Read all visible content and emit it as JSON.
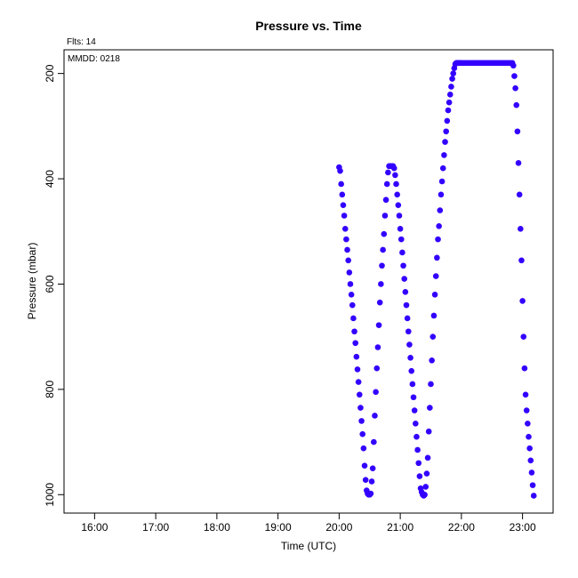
{
  "header": {
    "flts": "Flts: 14",
    "mmdd": "MMDD: 0218"
  },
  "chart_data": {
    "type": "scatter",
    "title": "Pressure  vs. Time",
    "xlabel": "Time (UTC)",
    "ylabel": "Pressure (mbar)",
    "xlim": [
      "15:30",
      "23:30"
    ],
    "ylim": [
      1035,
      155
    ],
    "y_inverted": true,
    "grid": false,
    "marker_color": "#3300ff",
    "x_ticks": [
      "16:00",
      "17:00",
      "18:00",
      "19:00",
      "20:00",
      "21:00",
      "22:00",
      "23:00"
    ],
    "y_ticks": [
      200,
      400,
      600,
      800,
      1000
    ],
    "series": [
      {
        "x": [
          "20:00",
          "20:01",
          "20:02",
          "20:03",
          "20:04",
          "20:05",
          "20:06",
          "20:07",
          "20:08",
          "20:09",
          "20:10",
          "20:11",
          "20:12",
          "20:13",
          "20:14",
          "20:15",
          "20:16",
          "20:17",
          "20:18",
          "20:19",
          "20:20",
          "20:21",
          "20:22",
          "20:23",
          "20:24",
          "20:25",
          "20:26",
          "20:27",
          "20:28",
          "20:29",
          "20:30",
          "20:31",
          "20:32",
          "20:33",
          "20:34",
          "20:35",
          "20:36",
          "20:37",
          "20:38",
          "20:39",
          "20:40",
          "20:41",
          "20:42",
          "20:43",
          "20:44",
          "20:45",
          "20:46",
          "20:47",
          "20:48",
          "20:49",
          "20:50",
          "20:51",
          "20:52",
          "20:53",
          "20:54",
          "20:55",
          "20:56",
          "20:57",
          "20:58",
          "20:59",
          "21:00",
          "21:01",
          "21:02",
          "21:03",
          "21:04",
          "21:05",
          "21:06",
          "21:07",
          "21:08",
          "21:09",
          "21:10",
          "21:11",
          "21:12",
          "21:13",
          "21:14",
          "21:15",
          "21:16",
          "21:17",
          "21:18",
          "21:19",
          "21:20",
          "21:21",
          "21:22",
          "21:23",
          "21:24",
          "21:25",
          "21:26",
          "21:27",
          "21:28",
          "21:29",
          "21:30",
          "21:31",
          "21:32",
          "21:33",
          "21:34",
          "21:35",
          "21:36",
          "21:37",
          "21:38",
          "21:39",
          "21:40",
          "21:41",
          "21:42",
          "21:43",
          "21:44",
          "21:45",
          "21:46",
          "21:47",
          "21:48",
          "21:49",
          "21:50",
          "21:51",
          "21:52",
          "21:53",
          "21:54",
          "21:55",
          "21:56",
          "21:57",
          "21:58",
          "21:59",
          "22:00",
          "22:02",
          "22:04",
          "22:06",
          "22:08",
          "22:10",
          "22:12",
          "22:14",
          "22:16",
          "22:18",
          "22:20",
          "22:22",
          "22:24",
          "22:26",
          "22:28",
          "22:30",
          "22:32",
          "22:34",
          "22:36",
          "22:38",
          "22:40",
          "22:42",
          "22:44",
          "22:46",
          "22:48",
          "22:50",
          "22:51",
          "22:52",
          "22:53",
          "22:54",
          "22:55",
          "22:56",
          "22:57",
          "22:58",
          "22:59",
          "23:00",
          "23:01",
          "23:02",
          "23:03",
          "23:04",
          "23:05",
          "23:06",
          "23:07",
          "23:08",
          "23:09",
          "23:10",
          "23:11"
        ],
        "y": [
          378,
          385,
          410,
          430,
          450,
          470,
          495,
          515,
          535,
          555,
          578,
          600,
          620,
          640,
          665,
          690,
          712,
          738,
          762,
          786,
          810,
          835,
          860,
          885,
          912,
          945,
          972,
          992,
          998,
          1000,
          1000,
          998,
          975,
          950,
          900,
          850,
          805,
          760,
          720,
          678,
          635,
          600,
          565,
          535,
          505,
          470,
          440,
          410,
          388,
          376,
          376,
          376,
          376,
          376,
          380,
          393,
          410,
          430,
          450,
          470,
          495,
          515,
          540,
          565,
          590,
          615,
          640,
          665,
          690,
          715,
          740,
          765,
          790,
          815,
          840,
          865,
          890,
          915,
          940,
          965,
          988,
          995,
          1000,
          1002,
          1000,
          985,
          960,
          930,
          880,
          835,
          790,
          745,
          700,
          660,
          620,
          585,
          550,
          515,
          490,
          460,
          430,
          405,
          380,
          355,
          330,
          310,
          290,
          270,
          255,
          240,
          225,
          210,
          200,
          190,
          182,
          180,
          180,
          180,
          180,
          180,
          180,
          180,
          180,
          180,
          180,
          180,
          180,
          180,
          180,
          180,
          180,
          180,
          180,
          180,
          180,
          180,
          180,
          180,
          180,
          180,
          180,
          180,
          180,
          180,
          180,
          180,
          185,
          205,
          228,
          260,
          310,
          370,
          430,
          495,
          555,
          632,
          700,
          760,
          810,
          840,
          865,
          890,
          912,
          935,
          958,
          982,
          1002
        ]
      }
    ]
  }
}
